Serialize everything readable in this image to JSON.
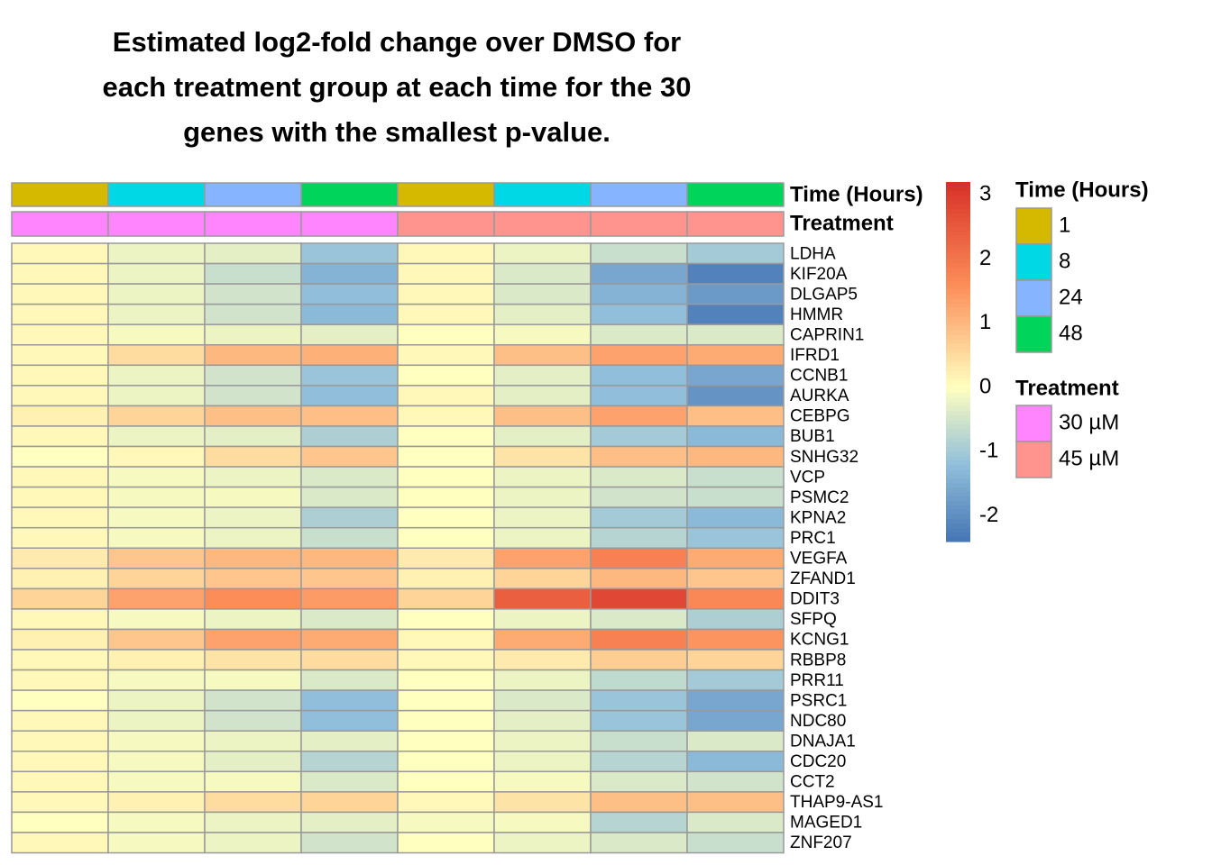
{
  "chart_data": {
    "type": "heatmap",
    "title": "Estimated log2-fold change over DMSO for each treatment group at each time for the 30 genes with the smallest p-value.",
    "title_lines": [
      "Estimated log2-fold change over DMSO for",
      "each treatment group at each time for the 30",
      "genes with the smallest p-value."
    ],
    "columns": [
      {
        "time": "1",
        "treatment": "30 µM"
      },
      {
        "time": "8",
        "treatment": "30 µM"
      },
      {
        "time": "24",
        "treatment": "30 µM"
      },
      {
        "time": "48",
        "treatment": "30 µM"
      },
      {
        "time": "1",
        "treatment": "45 µM"
      },
      {
        "time": "8",
        "treatment": "45 µM"
      },
      {
        "time": "24",
        "treatment": "45 µM"
      },
      {
        "time": "48",
        "treatment": "45 µM"
      }
    ],
    "annotation_rows": [
      "Time (Hours)",
      "Treatment"
    ],
    "genes": [
      "LDHA",
      "KIF20A",
      "DLGAP5",
      "HMMR",
      "CAPRIN1",
      "IFRD1",
      "CCNB1",
      "AURKA",
      "CEBPG",
      "BUB1",
      "SNHG32",
      "VCP",
      "PSMC2",
      "KPNA2",
      "PRC1",
      "VEGFA",
      "ZFAND1",
      "DDIT3",
      "SFPQ",
      "KCNG1",
      "RBBP8",
      "PRR11",
      "PSRC1",
      "NDC80",
      "DNAJA1",
      "CDC20",
      "CCT2",
      "THAP9-AS1",
      "MAGED1",
      "ZNF207"
    ],
    "values": [
      [
        0.1,
        -0.2,
        -0.3,
        -1.1,
        0.1,
        -0.2,
        -0.6,
        -1.0
      ],
      [
        0.1,
        -0.2,
        -0.6,
        -1.4,
        0.1,
        -0.4,
        -1.6,
        -2.2
      ],
      [
        0.1,
        -0.2,
        -0.5,
        -1.2,
        0.1,
        -0.4,
        -1.4,
        -1.8
      ],
      [
        0.1,
        -0.2,
        -0.5,
        -1.3,
        0.1,
        -0.3,
        -1.2,
        -2.2
      ],
      [
        0.1,
        -0.1,
        -0.2,
        -0.3,
        0.0,
        -0.1,
        -0.4,
        -0.4
      ],
      [
        0.1,
        0.5,
        1.0,
        1.1,
        0.1,
        0.9,
        1.3,
        1.2
      ],
      [
        0.1,
        -0.2,
        -0.5,
        -1.1,
        0.0,
        -0.3,
        -1.2,
        -1.6
      ],
      [
        0.1,
        -0.2,
        -0.5,
        -1.2,
        0.1,
        -0.3,
        -1.2,
        -1.9
      ],
      [
        0.2,
        0.6,
        0.9,
        0.9,
        0.1,
        0.9,
        1.3,
        0.9
      ],
      [
        0.1,
        -0.2,
        -0.3,
        -0.9,
        0.0,
        -0.3,
        -1.0,
        -1.3
      ],
      [
        0.0,
        0.1,
        0.5,
        0.8,
        0.0,
        0.4,
        0.9,
        1.0
      ],
      [
        0.1,
        -0.1,
        -0.2,
        -0.4,
        0.0,
        -0.2,
        -0.4,
        -0.6
      ],
      [
        0.1,
        -0.1,
        -0.1,
        -0.4,
        0.0,
        -0.2,
        -0.5,
        -0.6
      ],
      [
        0.1,
        -0.1,
        -0.2,
        -0.9,
        0.0,
        -0.2,
        -1.0,
        -1.3
      ],
      [
        0.1,
        -0.1,
        -0.2,
        -0.6,
        0.0,
        -0.2,
        -0.8,
        -1.1
      ],
      [
        0.3,
        0.8,
        1.0,
        1.0,
        0.3,
        1.3,
        1.8,
        1.2
      ],
      [
        0.2,
        0.6,
        0.8,
        0.8,
        0.2,
        0.6,
        1.0,
        0.8
      ],
      [
        0.6,
        1.3,
        1.6,
        1.4,
        0.6,
        2.4,
        2.8,
        1.7
      ],
      [
        0.1,
        -0.1,
        -0.2,
        -0.4,
        0.0,
        -0.2,
        -0.4,
        -0.9
      ],
      [
        0.2,
        0.8,
        1.3,
        1.2,
        0.1,
        1.2,
        1.8,
        1.5
      ],
      [
        0.1,
        0.2,
        0.4,
        0.5,
        0.1,
        0.3,
        0.7,
        0.6
      ],
      [
        0.1,
        -0.1,
        -0.1,
        -0.4,
        0.0,
        -0.2,
        -0.7,
        -1.0
      ],
      [
        0.0,
        -0.2,
        -0.5,
        -1.2,
        0.0,
        -0.4,
        -1.1,
        -1.6
      ],
      [
        0.1,
        -0.2,
        -0.5,
        -1.2,
        0.0,
        -0.3,
        -1.1,
        -1.6
      ],
      [
        0.1,
        -0.1,
        -0.2,
        -0.3,
        0.0,
        -0.2,
        -0.6,
        -0.4
      ],
      [
        0.1,
        -0.1,
        -0.3,
        -0.8,
        0.0,
        -0.2,
        -0.8,
        -1.3
      ],
      [
        0.1,
        -0.1,
        -0.1,
        -0.4,
        0.0,
        -0.1,
        -0.4,
        -0.5
      ],
      [
        0.1,
        0.2,
        0.5,
        0.6,
        0.1,
        0.4,
        0.9,
        0.9
      ],
      [
        0.0,
        -0.1,
        -0.2,
        -0.3,
        -0.1,
        -0.1,
        -0.8,
        -0.4
      ],
      [
        0.1,
        -0.1,
        -0.2,
        -0.5,
        0.0,
        -0.2,
        -0.4,
        -0.6
      ]
    ],
    "colorbar": {
      "ticks": [
        "3",
        "2",
        "1",
        "0",
        "-1",
        "-2"
      ],
      "min": -2.4,
      "max": 3.2
    },
    "legend_time": {
      "title": "Time (Hours)",
      "items": [
        {
          "label": "1",
          "color": "#d4b900"
        },
        {
          "label": "8",
          "color": "#00d8e6"
        },
        {
          "label": "24",
          "color": "#87b4ff"
        },
        {
          "label": "48",
          "color": "#00d45a"
        }
      ]
    },
    "legend_treatment": {
      "title": "Treatment",
      "items": [
        {
          "label": "30 µM",
          "color": "#ff85ff"
        },
        {
          "label": "45 µM",
          "color": "#ff938d"
        }
      ]
    }
  }
}
